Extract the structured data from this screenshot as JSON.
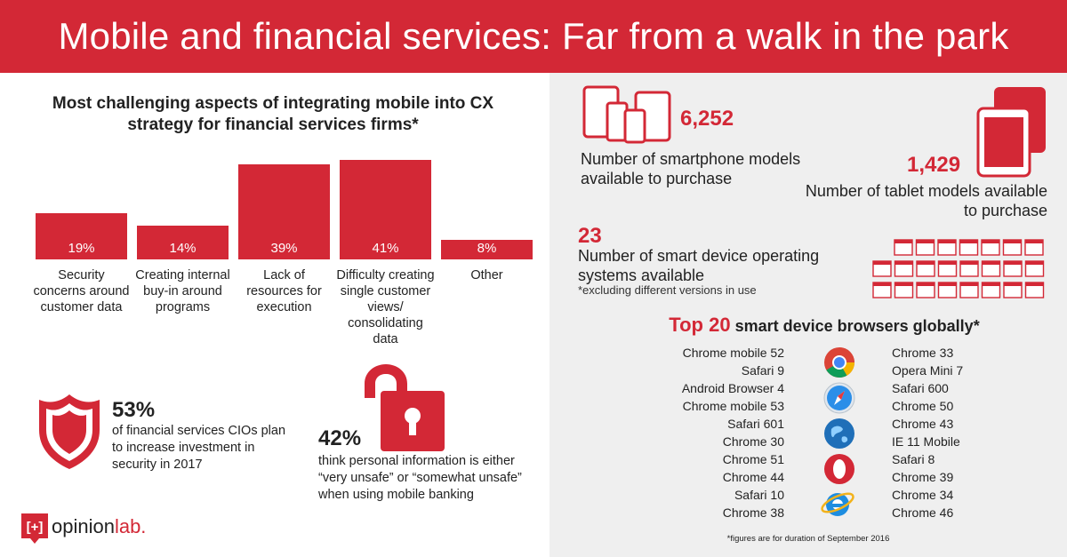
{
  "header": {
    "title": "Mobile and financial services: Far from a walk in the park"
  },
  "chart_data": {
    "type": "bar",
    "title": "Most challenging aspects of integrating mobile into CX strategy for financial services firms*",
    "categories": [
      "Security concerns around customer data",
      "Creating internal buy-in around programs",
      "Lack of resources for execution",
      "Difficulty creating single customer views/ consolidating data",
      "Other"
    ],
    "values": [
      19,
      14,
      39,
      41,
      8
    ],
    "value_labels": [
      "19%",
      "14%",
      "39%",
      "41%",
      "8%"
    ],
    "ylim": [
      0,
      41
    ],
    "color": "#d32836"
  },
  "stats": {
    "security": {
      "value": "53%",
      "text": "of financial services CIOs plan to increase investment in security in 2017"
    },
    "unsafe": {
      "value": "42%",
      "text": "think personal information is either “very unsafe” or “somewhat unsafe” when using mobile banking"
    }
  },
  "logo": {
    "bracket": "[+]",
    "text_a": "opinion",
    "text_b": "lab."
  },
  "devices": {
    "smartphones": {
      "value": "6,252",
      "text": "Number of smartphone models available to purchase"
    },
    "tablets": {
      "value": "1,429",
      "text": "Number of tablet models available to purchase"
    },
    "os": {
      "value": "23",
      "text": "Number of smart device operating systems available",
      "note": "*excluding different versions in use"
    }
  },
  "browsers": {
    "title_big": "Top 20",
    "title_rest": "smart device browsers globally*",
    "left": [
      "Chrome mobile 52",
      "Safari 9",
      "Android Browser 4",
      "Chrome mobile 53",
      "Safari 601",
      "Chrome 30",
      "Chrome 51",
      "Chrome 44",
      "Safari 10",
      "Chrome 38"
    ],
    "right": [
      "Chrome 33",
      "Opera Mini 7",
      "Safari 600",
      "Chrome 50",
      "Chrome 43",
      "IE 11 Mobile",
      "Safari 8",
      "Chrome 39",
      "Chrome 34",
      "Chrome 46"
    ],
    "icons": [
      "chrome-icon",
      "safari-icon",
      "android-browser-icon",
      "opera-icon",
      "ie-icon"
    ],
    "footnote": "*figures are for duration of September 2016"
  }
}
